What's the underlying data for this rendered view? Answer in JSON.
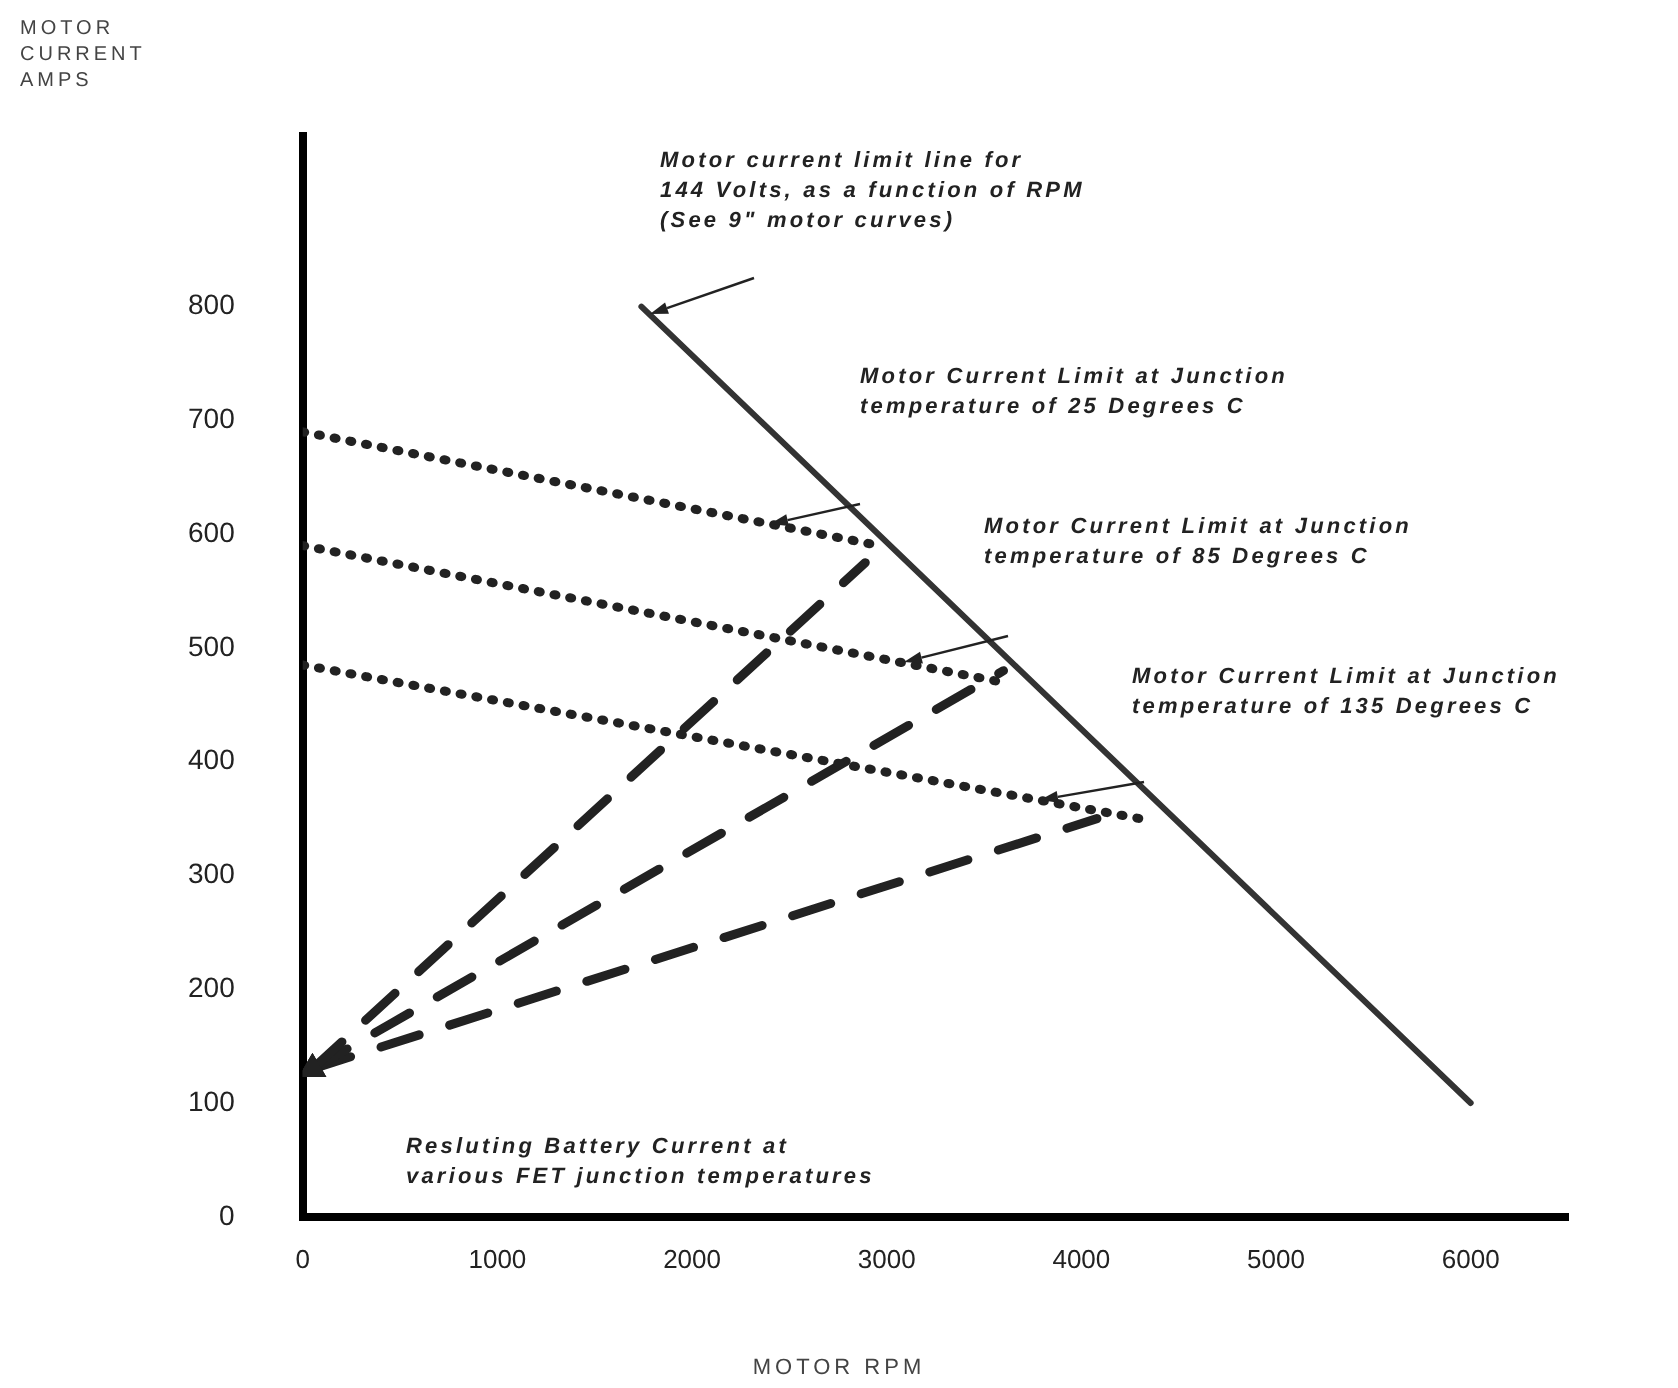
{
  "chart_data": {
    "type": "line",
    "xlabel": "MOTOR RPM",
    "ylabel": "MOTOR\nCURRENT\nAMPS",
    "xlim": [
      0,
      6500
    ],
    "xticks": [
      0,
      1000,
      2000,
      3000,
      4000,
      5000,
      6000
    ],
    "ylim": [
      0,
      950
    ],
    "yticks": [
      0,
      100,
      200,
      300,
      400,
      500,
      600,
      700,
      800
    ],
    "grid": false,
    "legend": false,
    "marker": "none",
    "series": [
      {
        "color": "#333333",
        "line_style": "solid",
        "x": [
          1740,
          6000
        ],
        "values": [
          800,
          100
        ]
      },
      {
        "color": "#222222",
        "line_style": "dotted",
        "x": [
          0,
          2960
        ],
        "values": [
          690,
          590
        ]
      },
      {
        "color": "#222222",
        "line_style": "dotted",
        "x": [
          0,
          3590
        ],
        "values": [
          590,
          470
        ]
      },
      {
        "color": "#222222",
        "line_style": "dotted",
        "x": [
          0,
          4300
        ],
        "values": [
          485,
          350
        ]
      },
      {
        "color": "#222222",
        "line_style": "dashed",
        "marker": "triangle",
        "x": [
          50,
          2890
        ],
        "values": [
          130,
          575
        ]
      },
      {
        "color": "#222222",
        "line_style": "dashed",
        "marker": "triangle",
        "x": [
          50,
          3600
        ],
        "values": [
          130,
          480
        ]
      },
      {
        "color": "#222222",
        "line_style": "dashed",
        "marker": "triangle",
        "x": [
          50,
          4080
        ],
        "values": [
          130,
          350
        ]
      }
    ],
    "annotations": [
      "Motor current limit line for\n144 Volts, as a function of RPM\n(See 9\" motor curves)",
      "Motor Current Limit at Junction\ntemperature of 25 Degrees C",
      "Motor Current Limit at Junction\ntemperature of 85 Degrees C",
      "Motor Current Limit at Junction\ntemperature of 135 Degrees C",
      "Resluting Battery Current at\nvarious FET junction temperatures"
    ]
  }
}
